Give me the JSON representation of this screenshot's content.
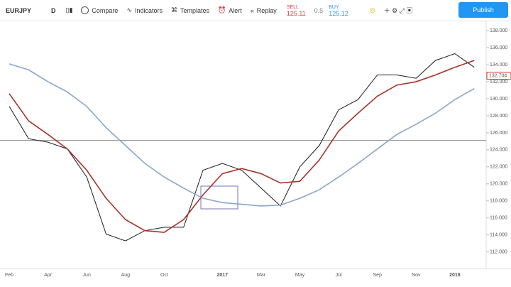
{
  "toolbar": {
    "symbol": "EURJPY",
    "interval": "D",
    "buttons": [
      "Compare",
      "Indicators",
      "Templates",
      "Alert",
      "Replay"
    ],
    "sell_label": "SELL",
    "sell_price": "125.11",
    "spread": "0.5",
    "buy_label": "BUY",
    "buy_price": "125.12",
    "publish": "Publish"
  },
  "chart_data": {
    "type": "line",
    "categories": [
      "Feb",
      null,
      "Apr",
      null,
      "Jun",
      null,
      "Aug",
      null,
      "Oct",
      null,
      null,
      "2017",
      null,
      "Mar",
      null,
      "May",
      null,
      "Jul",
      null,
      "Sep",
      null,
      "Nov",
      null,
      "2018",
      null
    ],
    "series": [
      {
        "color": "#1a1a1a",
        "values": [
          129.1,
          125.3,
          124.9,
          124.1,
          120.8,
          114.1,
          113.3,
          114.5,
          114.9,
          114.9,
          121.6,
          122.4,
          121.6,
          119.5,
          117.4,
          122.0,
          124.5,
          128.7,
          129.9,
          132.8,
          132.8,
          132.4,
          134.5,
          135.3,
          133.7
        ]
      },
      {
        "color": "#a83229",
        "values": [
          130.6,
          127.4,
          125.8,
          124.1,
          121.6,
          118.3,
          115.8,
          114.5,
          114.3,
          115.8,
          118.7,
          121.2,
          121.8,
          121.2,
          120.1,
          120.3,
          122.8,
          126.2,
          128.3,
          130.3,
          131.6,
          132.0,
          132.8,
          133.7,
          134.5
        ]
      },
      {
        "color": "#8aa6c8",
        "values": [
          134.1,
          133.4,
          132.0,
          130.8,
          129.1,
          126.6,
          124.5,
          122.4,
          120.8,
          119.5,
          118.3,
          117.8,
          117.6,
          117.4,
          117.5,
          118.3,
          119.3,
          120.8,
          122.4,
          124.1,
          125.8,
          127.0,
          128.3,
          129.9,
          131.2
        ]
      }
    ],
    "hline": 125.1,
    "last_price": {
      "value": 132.704,
      "label": "132.704"
    },
    "ylim": [
      110.3,
      139.1
    ],
    "yticks": [
      {
        "value": 138,
        "label": "138.000"
      },
      {
        "value": 136,
        "label": "136.000"
      },
      {
        "value": 134,
        "label": "134.000"
      },
      {
        "value": 132,
        "label": "132.000"
      },
      {
        "value": 130,
        "label": "130.000"
      },
      {
        "value": 128,
        "label": "128.000"
      },
      {
        "value": 126,
        "label": "126.000"
      },
      {
        "value": 124,
        "label": "124.000"
      },
      {
        "value": 122,
        "label": "122.000"
      },
      {
        "value": 120,
        "label": "120.000"
      },
      {
        "value": 118,
        "label": "118.000"
      },
      {
        "value": 116,
        "label": "116.000"
      },
      {
        "value": 114,
        "label": "114.000"
      },
      {
        "value": 112,
        "label": "112.000"
      }
    ]
  }
}
